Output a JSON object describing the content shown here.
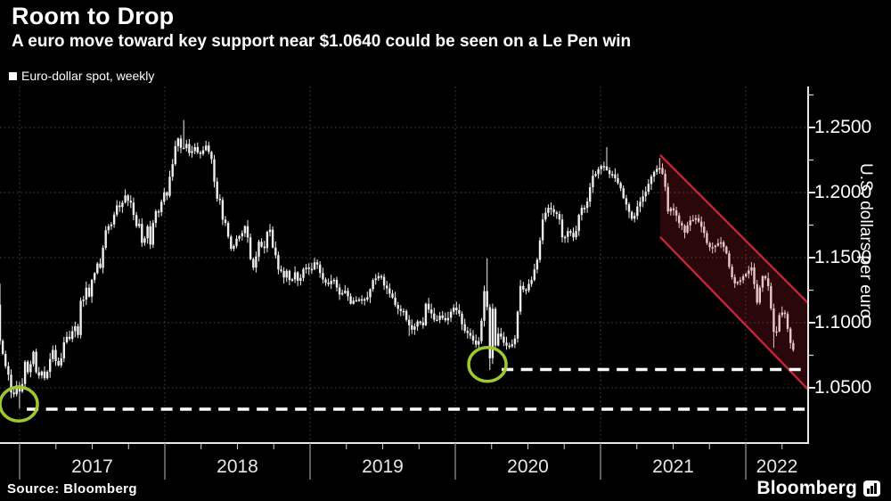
{
  "header": {
    "title": "Room to Drop",
    "subtitle": "A euro move toward key support near $1.0640 could be seen on a Le Pen win"
  },
  "legend": {
    "label": "Euro-dollar spot, weekly",
    "marker_color": "#ffffff"
  },
  "source": "Source: Bloomberg",
  "branding": {
    "logo_text": "Bloomberg"
  },
  "chart_data": {
    "type": "candlestick",
    "series_name": "Euro-dollar spot, weekly",
    "title": "Room to Drop",
    "ylabel": "U.S. dollars per euro",
    "y_ticks": [
      "1.2500",
      "1.2000",
      "1.1500",
      "1.1000",
      "1.0500"
    ],
    "y_tick_values": [
      1.25,
      1.2,
      1.15,
      1.1,
      1.05
    ],
    "y_minor_tick_values": [
      1.075,
      1.125,
      1.175,
      1.225,
      1.275
    ],
    "ylim": [
      1.01,
      1.283
    ],
    "x_years": [
      2017,
      2018,
      2019,
      2020,
      2021,
      2022
    ],
    "x_range_decimal_years": [
      2016.865,
      2022.34
    ],
    "grid": true,
    "legend_position": "top-left",
    "weekly_close_anchors": [
      [
        2016.846,
        1.114
      ],
      [
        2016.865,
        1.086
      ],
      [
        2016.885,
        1.076
      ],
      [
        2016.904,
        1.066
      ],
      [
        2016.923,
        1.059
      ],
      [
        2016.942,
        1.045
      ],
      [
        2016.962,
        1.046
      ],
      [
        2016.981,
        1.052
      ],
      [
        2017.0,
        1.047
      ],
      [
        2017.019,
        1.053
      ],
      [
        2017.038,
        1.07
      ],
      [
        2017.058,
        1.061
      ],
      [
        2017.077,
        1.069
      ],
      [
        2017.096,
        1.078
      ],
      [
        2017.115,
        1.062
      ],
      [
        2017.135,
        1.058
      ],
      [
        2017.154,
        1.062
      ],
      [
        2017.173,
        1.056
      ],
      [
        2017.192,
        1.062
      ],
      [
        2017.212,
        1.074
      ],
      [
        2017.231,
        1.08
      ],
      [
        2017.25,
        1.07
      ],
      [
        2017.269,
        1.066
      ],
      [
        2017.288,
        1.072
      ],
      [
        2017.308,
        1.087
      ],
      [
        2017.327,
        1.09
      ],
      [
        2017.346,
        1.086
      ],
      [
        2017.365,
        1.093
      ],
      [
        2017.385,
        1.098
      ],
      [
        2017.404,
        1.089
      ],
      [
        2017.423,
        1.12
      ],
      [
        2017.442,
        1.118
      ],
      [
        2017.46,
        1.128
      ],
      [
        2017.48,
        1.119
      ],
      [
        2017.5,
        1.135
      ],
      [
        2017.52,
        1.14
      ],
      [
        2017.54,
        1.147
      ],
      [
        2017.56,
        1.139
      ],
      [
        2017.58,
        1.166
      ],
      [
        2017.6,
        1.175
      ],
      [
        2017.62,
        1.173
      ],
      [
        2017.64,
        1.178
      ],
      [
        2017.66,
        1.186
      ],
      [
        2017.68,
        1.192
      ],
      [
        2017.7,
        1.186
      ],
      [
        2017.72,
        1.203
      ],
      [
        2017.74,
        1.192
      ],
      [
        2017.76,
        1.194
      ],
      [
        2017.78,
        1.185
      ],
      [
        2017.8,
        1.174
      ],
      [
        2017.82,
        1.178
      ],
      [
        2017.84,
        1.161
      ],
      [
        2017.86,
        1.165
      ],
      [
        2017.88,
        1.175
      ],
      [
        2017.9,
        1.161
      ],
      [
        2017.92,
        1.178
      ],
      [
        2017.94,
        1.186
      ],
      [
        2017.96,
        1.186
      ],
      [
        2017.98,
        1.194
      ],
      [
        2018.0,
        1.203
      ],
      [
        2018.02,
        1.197
      ],
      [
        2018.04,
        1.22
      ],
      [
        2018.06,
        1.222
      ],
      [
        2018.08,
        1.243
      ],
      [
        2018.1,
        1.24
      ],
      [
        2018.12,
        1.229
      ],
      [
        2018.14,
        1.241
      ],
      [
        2018.16,
        1.232
      ],
      [
        2018.18,
        1.229
      ],
      [
        2018.2,
        1.236
      ],
      [
        2018.22,
        1.231
      ],
      [
        2018.24,
        1.229
      ],
      [
        2018.26,
        1.232
      ],
      [
        2018.28,
        1.238
      ],
      [
        2018.3,
        1.233
      ],
      [
        2018.32,
        1.228
      ],
      [
        2018.34,
        1.208
      ],
      [
        2018.36,
        1.196
      ],
      [
        2018.38,
        1.194
      ],
      [
        2018.4,
        1.178
      ],
      [
        2018.42,
        1.177
      ],
      [
        2018.44,
        1.165
      ],
      [
        2018.46,
        1.154
      ],
      [
        2018.48,
        1.16
      ],
      [
        2018.5,
        1.168
      ],
      [
        2018.52,
        1.165
      ],
      [
        2018.54,
        1.172
      ],
      [
        2018.56,
        1.174
      ],
      [
        2018.58,
        1.157
      ],
      [
        2018.6,
        1.141
      ],
      [
        2018.62,
        1.144
      ],
      [
        2018.64,
        1.162
      ],
      [
        2018.66,
        1.16
      ],
      [
        2018.68,
        1.155
      ],
      [
        2018.7,
        1.167
      ],
      [
        2018.72,
        1.175
      ],
      [
        2018.74,
        1.16
      ],
      [
        2018.76,
        1.152
      ],
      [
        2018.78,
        1.14
      ],
      [
        2018.8,
        1.139
      ],
      [
        2018.82,
        1.134
      ],
      [
        2018.84,
        1.141
      ],
      [
        2018.86,
        1.133
      ],
      [
        2018.88,
        1.134
      ],
      [
        2018.9,
        1.14
      ],
      [
        2018.92,
        1.131
      ],
      [
        2018.94,
        1.137
      ],
      [
        2018.96,
        1.144
      ],
      [
        2018.98,
        1.143
      ],
      [
        2019.0,
        1.14
      ],
      [
        2019.04,
        1.147
      ],
      [
        2019.08,
        1.134
      ],
      [
        2019.12,
        1.13
      ],
      [
        2019.16,
        1.134
      ],
      [
        2019.2,
        1.122
      ],
      [
        2019.24,
        1.125
      ],
      [
        2019.28,
        1.115
      ],
      [
        2019.32,
        1.118
      ],
      [
        2019.36,
        1.117
      ],
      [
        2019.4,
        1.121
      ],
      [
        2019.44,
        1.134
      ],
      [
        2019.48,
        1.137
      ],
      [
        2019.52,
        1.127
      ],
      [
        2019.56,
        1.122
      ],
      [
        2019.6,
        1.11
      ],
      [
        2019.64,
        1.11
      ],
      [
        2019.68,
        1.098
      ],
      [
        2019.7,
        1.094
      ],
      [
        2019.74,
        1.102
      ],
      [
        2019.78,
        1.098
      ],
      [
        2019.8,
        1.116
      ],
      [
        2019.82,
        1.11
      ],
      [
        2019.86,
        1.102
      ],
      [
        2019.9,
        1.105
      ],
      [
        2019.94,
        1.102
      ],
      [
        2019.98,
        1.112
      ],
      [
        2020.02,
        1.109
      ],
      [
        2020.06,
        1.095
      ],
      [
        2020.1,
        1.091
      ],
      [
        2020.145,
        1.083
      ],
      [
        2020.164,
        1.085
      ],
      [
        2020.183,
        1.103
      ],
      [
        2020.202,
        1.128
      ],
      [
        2020.221,
        1.111
      ],
      [
        2020.24,
        1.069
      ],
      [
        2020.259,
        1.114
      ],
      [
        2020.278,
        1.08
      ],
      [
        2020.3,
        1.094
      ],
      [
        2020.34,
        1.082
      ],
      [
        2020.38,
        1.082
      ],
      [
        2020.42,
        1.09
      ],
      [
        2020.44,
        1.129
      ],
      [
        2020.48,
        1.125
      ],
      [
        2020.52,
        1.131
      ],
      [
        2020.56,
        1.146
      ],
      [
        2020.6,
        1.178
      ],
      [
        2020.64,
        1.188
      ],
      [
        2020.68,
        1.184
      ],
      [
        2020.71,
        1.184
      ],
      [
        2020.74,
        1.163
      ],
      [
        2020.78,
        1.172
      ],
      [
        2020.82,
        1.165
      ],
      [
        2020.86,
        1.187
      ],
      [
        2020.9,
        1.189
      ],
      [
        2020.94,
        1.212
      ],
      [
        2020.98,
        1.217
      ],
      [
        2021.02,
        1.222
      ],
      [
        2021.06,
        1.215
      ],
      [
        2021.1,
        1.212
      ],
      [
        2021.14,
        1.202
      ],
      [
        2021.18,
        1.19
      ],
      [
        2021.22,
        1.179
      ],
      [
        2021.26,
        1.19
      ],
      [
        2021.3,
        1.198
      ],
      [
        2021.34,
        1.21
      ],
      [
        2021.38,
        1.217
      ],
      [
        2021.41,
        1.22
      ],
      [
        2021.44,
        1.21
      ],
      [
        2021.46,
        1.186
      ],
      [
        2021.5,
        1.188
      ],
      [
        2021.54,
        1.177
      ],
      [
        2021.58,
        1.17
      ],
      [
        2021.62,
        1.179
      ],
      [
        2021.66,
        1.181
      ],
      [
        2021.7,
        1.172
      ],
      [
        2021.74,
        1.16
      ],
      [
        2021.78,
        1.157
      ],
      [
        2021.82,
        1.164
      ],
      [
        2021.86,
        1.156
      ],
      [
        2021.88,
        1.145
      ],
      [
        2021.92,
        1.129
      ],
      [
        2021.96,
        1.132
      ],
      [
        2022.0,
        1.137
      ],
      [
        2022.04,
        1.143
      ],
      [
        2022.08,
        1.115
      ],
      [
        2022.11,
        1.135
      ],
      [
        2022.14,
        1.135
      ],
      [
        2022.16,
        1.127
      ],
      [
        2022.19,
        1.093
      ],
      [
        2022.21,
        1.091
      ],
      [
        2022.23,
        1.105
      ],
      [
        2022.26,
        1.11
      ],
      [
        2022.28,
        1.101
      ],
      [
        2022.31,
        1.082
      ],
      [
        2022.33,
        1.079
      ]
    ],
    "key_extremes": [
      {
        "t": 2016.868,
        "high": 1.1299,
        "low": 1.083
      },
      {
        "t": 2017.0,
        "low": 1.0341
      },
      {
        "t": 2018.13,
        "high": 1.2556
      },
      {
        "t": 2019.69,
        "low": 1.0899
      },
      {
        "t": 2020.221,
        "high": 1.1495
      },
      {
        "t": 2020.24,
        "low": 1.0636
      },
      {
        "t": 2021.038,
        "high": 1.2349
      },
      {
        "t": 2021.4,
        "high": 1.2266
      },
      {
        "t": 2022.19,
        "low": 1.0806
      }
    ],
    "annotations": {
      "support_lines": [
        {
          "value": 1.064,
          "t_start": 2020.32,
          "label": "key support near $1.0640"
        },
        {
          "value": 1.0336,
          "t_start": 2017.05,
          "label": "2017 low support"
        }
      ],
      "highlight_circles": [
        {
          "t": 2016.994,
          "value": 1.0375,
          "label": "early-2017 low"
        },
        {
          "t": 2020.221,
          "value": 1.068,
          "label": "March 2020 low"
        }
      ],
      "channel": {
        "t_start": 2021.411,
        "t_end": 2022.43,
        "top_start": 1.2288,
        "top_end": 1.115,
        "bottom_start": 1.1658,
        "bottom_end": 1.0486
      }
    },
    "colors": {
      "background": "#000000",
      "bars": "#efefef",
      "grid": "#474747",
      "axis": "#e8e8e8",
      "tick": "#cfcfcf",
      "year_separator": "#8f8f8f",
      "channel_stroke": "#cb2438",
      "channel_fill": "rgba(203,36,56,0.20)",
      "circle": "#9dc92f",
      "dashed_support": "#ffffff"
    }
  }
}
